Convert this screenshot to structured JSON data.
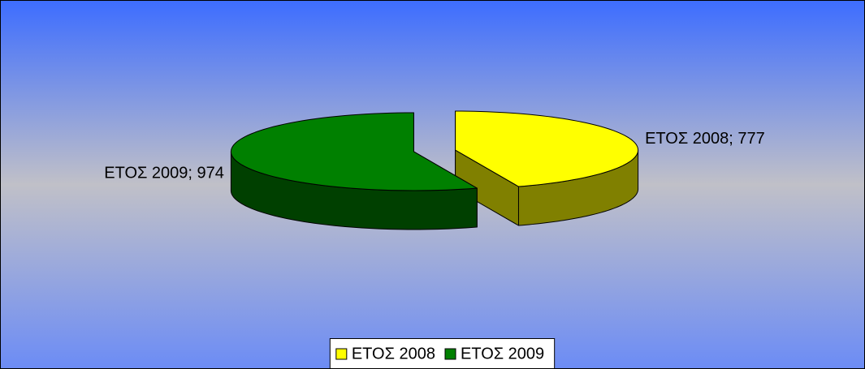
{
  "chart_data": {
    "type": "pie",
    "categories": [
      "ΕΤΟΣ 2008",
      "ΕΤΟΣ 2009"
    ],
    "values": [
      777,
      974
    ],
    "value_labels": [
      "ΕΤΟΣ 2008; 777",
      "ΕΤΟΣ 2009; 974"
    ],
    "colors": [
      "#ffff00",
      "#008000"
    ],
    "legend": "bottom"
  }
}
